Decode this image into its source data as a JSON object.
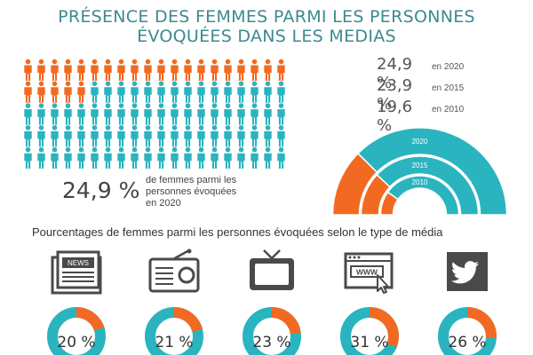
{
  "title": {
    "line1": "PRÉSENCE DES FEMMES PARMI LES PERSONNES",
    "line2": "ÉVOQUÉES DANS LES MEDIAS"
  },
  "colors": {
    "women": "#f26a21",
    "men": "#2ab4bf",
    "text": "#444444",
    "title": "#3d8a8f",
    "icon": "#4a4a4a"
  },
  "stats": [
    {
      "value": "24,9 %",
      "year": "en 2020"
    },
    {
      "value": "23,9 %",
      "year": "en 2015"
    },
    {
      "value": "19,6 %",
      "year": "en 2010"
    }
  ],
  "pictogram": {
    "big_value": "24,9 %",
    "description": "de femmes parmi les personnes évoquées en 2020"
  },
  "subtitle": "Pourcentages de femmes parmi les personnes évoquées selon le type de média",
  "chart_data": [
    {
      "type": "pictogram",
      "total": 100,
      "highlighted": 25,
      "series": [
        {
          "name": "femmes",
          "value": 24.9,
          "color": "#f26a21"
        },
        {
          "name": "",
          "value": 75.1,
          "color": "#2ab4bf"
        }
      ],
      "caption": "24,9 % de femmes parmi les personnes évoquées en 2020"
    },
    {
      "type": "semi-donut",
      "categories": [
        "2020",
        "2015",
        "2010"
      ],
      "values": [
        24.9,
        23.9,
        19.6
      ],
      "labels": [
        "24,9 %",
        "23,9 %",
        "19,6 %"
      ]
    },
    {
      "type": "donut",
      "categories": [
        "presse écrite",
        "radio",
        "télévision",
        "web",
        "twitter"
      ],
      "values": [
        20,
        21,
        23,
        31,
        26
      ],
      "labels": [
        "20 %",
        "21 %",
        "23 %",
        "31 %",
        "26 %"
      ]
    }
  ],
  "media": [
    {
      "icon": "newspaper-icon",
      "value": 20,
      "label": "20 %",
      "icon_text": "NEWS"
    },
    {
      "icon": "radio-icon",
      "value": 21,
      "label": "21 %"
    },
    {
      "icon": "television-icon",
      "value": 23,
      "label": "23 %"
    },
    {
      "icon": "web-icon",
      "value": 31,
      "label": "31 %",
      "icon_text": "WWW"
    },
    {
      "icon": "twitter-icon",
      "value": 26,
      "label": "26 %"
    }
  ]
}
